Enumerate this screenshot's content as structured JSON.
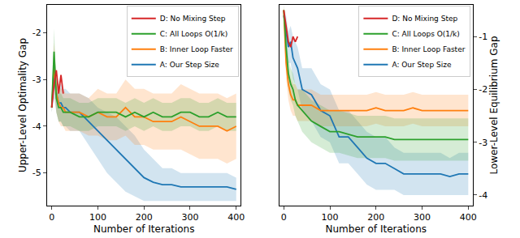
{
  "chart_data": [
    {
      "type": "line",
      "xlabel": "Number of Iterations",
      "ylabel": "Upper-Level Optimality Gap",
      "x": [
        0,
        5,
        10,
        15,
        20,
        25,
        30,
        40,
        60,
        80,
        100,
        120,
        140,
        160,
        180,
        200,
        220,
        240,
        260,
        280,
        300,
        320,
        340,
        360,
        380,
        400
      ],
      "xlim": [
        -10,
        410
      ],
      "xticks": [
        0,
        100,
        200,
        300,
        400
      ],
      "ylim": [
        -5.7,
        -1.4
      ],
      "yticks": [
        -5,
        -4,
        -3,
        -2
      ],
      "grid": false,
      "legend": "upper right",
      "series": [
        {
          "name": "A: Our Step Size",
          "color": "#1f77b4",
          "values": [
            -3.6,
            -2.9,
            -3.3,
            -3.5,
            -3.5,
            -3.6,
            -3.6,
            -3.7,
            -3.7,
            -3.9,
            -4.1,
            -4.3,
            -4.5,
            -4.7,
            -4.9,
            -5.1,
            -5.2,
            -5.25,
            -5.25,
            -5.3,
            -5.3,
            -5.3,
            -5.3,
            -5.3,
            -5.3,
            -5.35
          ],
          "lower": [
            -3.7,
            -3.4,
            -3.7,
            -3.9,
            -3.9,
            -4.0,
            -4.0,
            -4.1,
            -4.1,
            -4.4,
            -4.7,
            -5.0,
            -5.2,
            -5.4,
            -5.5,
            -5.6,
            -5.6,
            -5.6,
            -5.6,
            -5.6,
            -5.6,
            -5.6,
            -5.6,
            -5.6,
            -5.6,
            -5.6
          ],
          "upper": [
            -3.5,
            -2.4,
            -2.9,
            -3.1,
            -3.1,
            -3.2,
            -3.2,
            -3.3,
            -3.3,
            -3.4,
            -3.6,
            -3.7,
            -3.8,
            -4.0,
            -4.2,
            -4.5,
            -4.7,
            -4.9,
            -4.9,
            -5.0,
            -5.0,
            -5.0,
            -5.0,
            -5.0,
            -5.0,
            -5.1
          ]
        },
        {
          "name": "B: Inner Loop Faster",
          "color": "#ff7f0e",
          "values": [
            -3.6,
            -2.7,
            -3.3,
            -3.5,
            -3.6,
            -3.6,
            -3.7,
            -3.7,
            -3.7,
            -3.8,
            -3.7,
            -3.8,
            -3.8,
            -3.6,
            -3.8,
            -3.8,
            -3.9,
            -3.9,
            -3.9,
            -3.8,
            -3.9,
            -4.0,
            -4.0,
            -4.0,
            -4.1,
            -4.0
          ],
          "lower": [
            -3.7,
            -3.2,
            -3.7,
            -3.9,
            -4.0,
            -4.0,
            -4.1,
            -4.1,
            -4.1,
            -4.2,
            -4.2,
            -4.3,
            -4.3,
            -4.2,
            -4.4,
            -4.4,
            -4.5,
            -4.5,
            -4.5,
            -4.5,
            -4.6,
            -4.7,
            -4.7,
            -4.7,
            -4.8,
            -4.7
          ],
          "upper": [
            -3.5,
            -2.2,
            -2.9,
            -3.1,
            -3.2,
            -3.2,
            -3.3,
            -3.3,
            -3.3,
            -3.4,
            -3.2,
            -3.3,
            -3.3,
            -3.0,
            -3.2,
            -3.2,
            -3.3,
            -3.3,
            -3.3,
            -3.1,
            -3.2,
            -3.3,
            -3.3,
            -3.3,
            -3.4,
            -3.3
          ]
        },
        {
          "name": "C: All Loops O(1/k)",
          "color": "#2ca02c",
          "values": [
            -3.6,
            -2.4,
            -3.4,
            -3.6,
            -3.6,
            -3.7,
            -3.7,
            -3.7,
            -3.8,
            -3.8,
            -3.7,
            -3.7,
            -3.7,
            -3.8,
            -3.7,
            -3.8,
            -3.7,
            -3.8,
            -3.8,
            -3.7,
            -3.7,
            -3.8,
            -3.8,
            -3.7,
            -3.8,
            -3.8
          ],
          "lower": [
            -3.7,
            -2.9,
            -3.7,
            -3.9,
            -3.9,
            -4.0,
            -4.0,
            -4.0,
            -4.1,
            -4.1,
            -4.0,
            -4.0,
            -4.0,
            -4.1,
            -4.0,
            -4.1,
            -4.0,
            -4.1,
            -4.1,
            -4.0,
            -4.0,
            -4.1,
            -4.1,
            -4.0,
            -4.1,
            -4.1
          ],
          "upper": [
            -3.5,
            -1.9,
            -3.1,
            -3.3,
            -3.3,
            -3.4,
            -3.4,
            -3.4,
            -3.5,
            -3.5,
            -3.4,
            -3.4,
            -3.4,
            -3.5,
            -3.4,
            -3.5,
            -3.4,
            -3.5,
            -3.5,
            -3.4,
            -3.4,
            -3.5,
            -3.5,
            -3.4,
            -3.5,
            -3.5
          ]
        },
        {
          "name": "D: No Mixing Step",
          "color": "#d62728",
          "values": [
            -3.6,
            -3.1,
            -2.8,
            -3.3,
            -2.9,
            -3.3,
            null,
            null,
            null,
            null,
            null,
            null,
            null,
            null,
            null,
            null,
            null,
            null,
            null,
            null,
            null,
            null,
            null,
            null,
            null,
            null
          ]
        }
      ]
    },
    {
      "type": "line",
      "xlabel": "Number of Iterations",
      "ylabel": "Lower-Level Equilibrium Gap",
      "x": [
        0,
        5,
        10,
        15,
        20,
        25,
        30,
        40,
        60,
        80,
        100,
        120,
        140,
        160,
        180,
        200,
        220,
        240,
        260,
        280,
        300,
        320,
        340,
        360,
        380,
        400
      ],
      "xlim": [
        -10,
        410
      ],
      "xticks": [
        0,
        100,
        200,
        300,
        400
      ],
      "ylim": [
        -4.2,
        -0.4
      ],
      "yticks": [
        -4,
        -3,
        -2,
        -1
      ],
      "grid": false,
      "legend": "upper right",
      "series": [
        {
          "name": "A: Our Step Size",
          "color": "#1f77b4",
          "values": [
            -0.6,
            -0.9,
            -1.2,
            -1.1,
            -1.4,
            -1.5,
            -1.6,
            -2.0,
            -2.1,
            -2.4,
            -2.5,
            -2.9,
            -2.9,
            -3.1,
            -3.3,
            -3.4,
            -3.4,
            -3.5,
            -3.6,
            -3.6,
            -3.6,
            -3.6,
            -3.6,
            -3.65,
            -3.6,
            -3.6
          ],
          "lower": [
            -0.7,
            -1.2,
            -1.5,
            -1.5,
            -1.8,
            -1.9,
            -2.0,
            -2.4,
            -2.6,
            -2.9,
            -3.0,
            -3.4,
            -3.4,
            -3.6,
            -3.8,
            -3.9,
            -3.9,
            -3.9,
            -4.0,
            -4.0,
            -4.0,
            -4.0,
            -4.0,
            -4.0,
            -4.0,
            -4.0
          ],
          "upper": [
            -0.5,
            -0.6,
            -0.9,
            -0.8,
            -1.0,
            -1.1,
            -1.2,
            -1.6,
            -1.6,
            -1.9,
            -2.0,
            -2.4,
            -2.4,
            -2.6,
            -2.8,
            -2.9,
            -2.9,
            -3.1,
            -3.2,
            -3.2,
            -3.2,
            -3.2,
            -3.2,
            -3.3,
            -3.2,
            -3.2
          ]
        },
        {
          "name": "B: Inner Loop Faster",
          "color": "#ff7f0e",
          "values": [
            -0.5,
            -1.5,
            -1.9,
            -2.1,
            -2.2,
            -2.2,
            -2.3,
            -2.3,
            -2.3,
            -2.4,
            -2.4,
            -2.4,
            -2.4,
            -2.4,
            -2.4,
            -2.35,
            -2.4,
            -2.4,
            -2.4,
            -2.35,
            -2.4,
            -2.4,
            -2.4,
            -2.4,
            -2.4,
            -2.4
          ],
          "lower": [
            -0.6,
            -1.8,
            -2.2,
            -2.4,
            -2.5,
            -2.5,
            -2.6,
            -2.6,
            -2.6,
            -2.7,
            -2.7,
            -2.7,
            -2.7,
            -2.7,
            -2.7,
            -2.65,
            -2.7,
            -2.7,
            -2.7,
            -2.65,
            -2.7,
            -2.7,
            -2.7,
            -2.7,
            -2.7,
            -2.7
          ],
          "upper": [
            -0.4,
            -1.2,
            -1.6,
            -1.8,
            -1.9,
            -1.9,
            -2.0,
            -2.0,
            -2.0,
            -2.1,
            -2.1,
            -2.1,
            -2.1,
            -2.1,
            -2.1,
            -2.05,
            -2.1,
            -2.1,
            -2.1,
            -2.05,
            -2.1,
            -2.1,
            -2.1,
            -2.1,
            -2.1,
            -2.1
          ]
        },
        {
          "name": "C: All Loops O(1/k)",
          "color": "#2ca02c",
          "values": [
            -0.5,
            -1.2,
            -1.7,
            -1.9,
            -2.0,
            -2.2,
            -2.3,
            -2.4,
            -2.6,
            -2.7,
            -2.8,
            -2.8,
            -2.85,
            -2.9,
            -2.9,
            -2.9,
            -2.9,
            -2.95,
            -2.95,
            -2.95,
            -2.95,
            -2.95,
            -2.95,
            -2.95,
            -2.95,
            -2.95
          ],
          "lower": [
            -0.6,
            -1.5,
            -2.0,
            -2.2,
            -2.3,
            -2.5,
            -2.6,
            -2.8,
            -3.0,
            -3.1,
            -3.2,
            -3.2,
            -3.25,
            -3.3,
            -3.3,
            -3.3,
            -3.3,
            -3.35,
            -3.35,
            -3.35,
            -3.35,
            -3.35,
            -3.35,
            -3.35,
            -3.35,
            -3.35
          ],
          "upper": [
            -0.4,
            -0.9,
            -1.4,
            -1.6,
            -1.7,
            -1.9,
            -2.0,
            -2.0,
            -2.2,
            -2.3,
            -2.4,
            -2.4,
            -2.45,
            -2.5,
            -2.5,
            -2.5,
            -2.5,
            -2.55,
            -2.55,
            -2.55,
            -2.55,
            -2.55,
            -2.55,
            -2.55,
            -2.55,
            -2.55
          ]
        },
        {
          "name": "D: No Mixing Step",
          "color": "#d62728",
          "values": [
            -0.5,
            -0.8,
            -1.1,
            -1.2,
            -1.0,
            -1.1,
            -1.0,
            null,
            null,
            null,
            null,
            null,
            null,
            null,
            null,
            null,
            null,
            null,
            null,
            null,
            null,
            null,
            null,
            null,
            null,
            null
          ]
        }
      ]
    }
  ]
}
